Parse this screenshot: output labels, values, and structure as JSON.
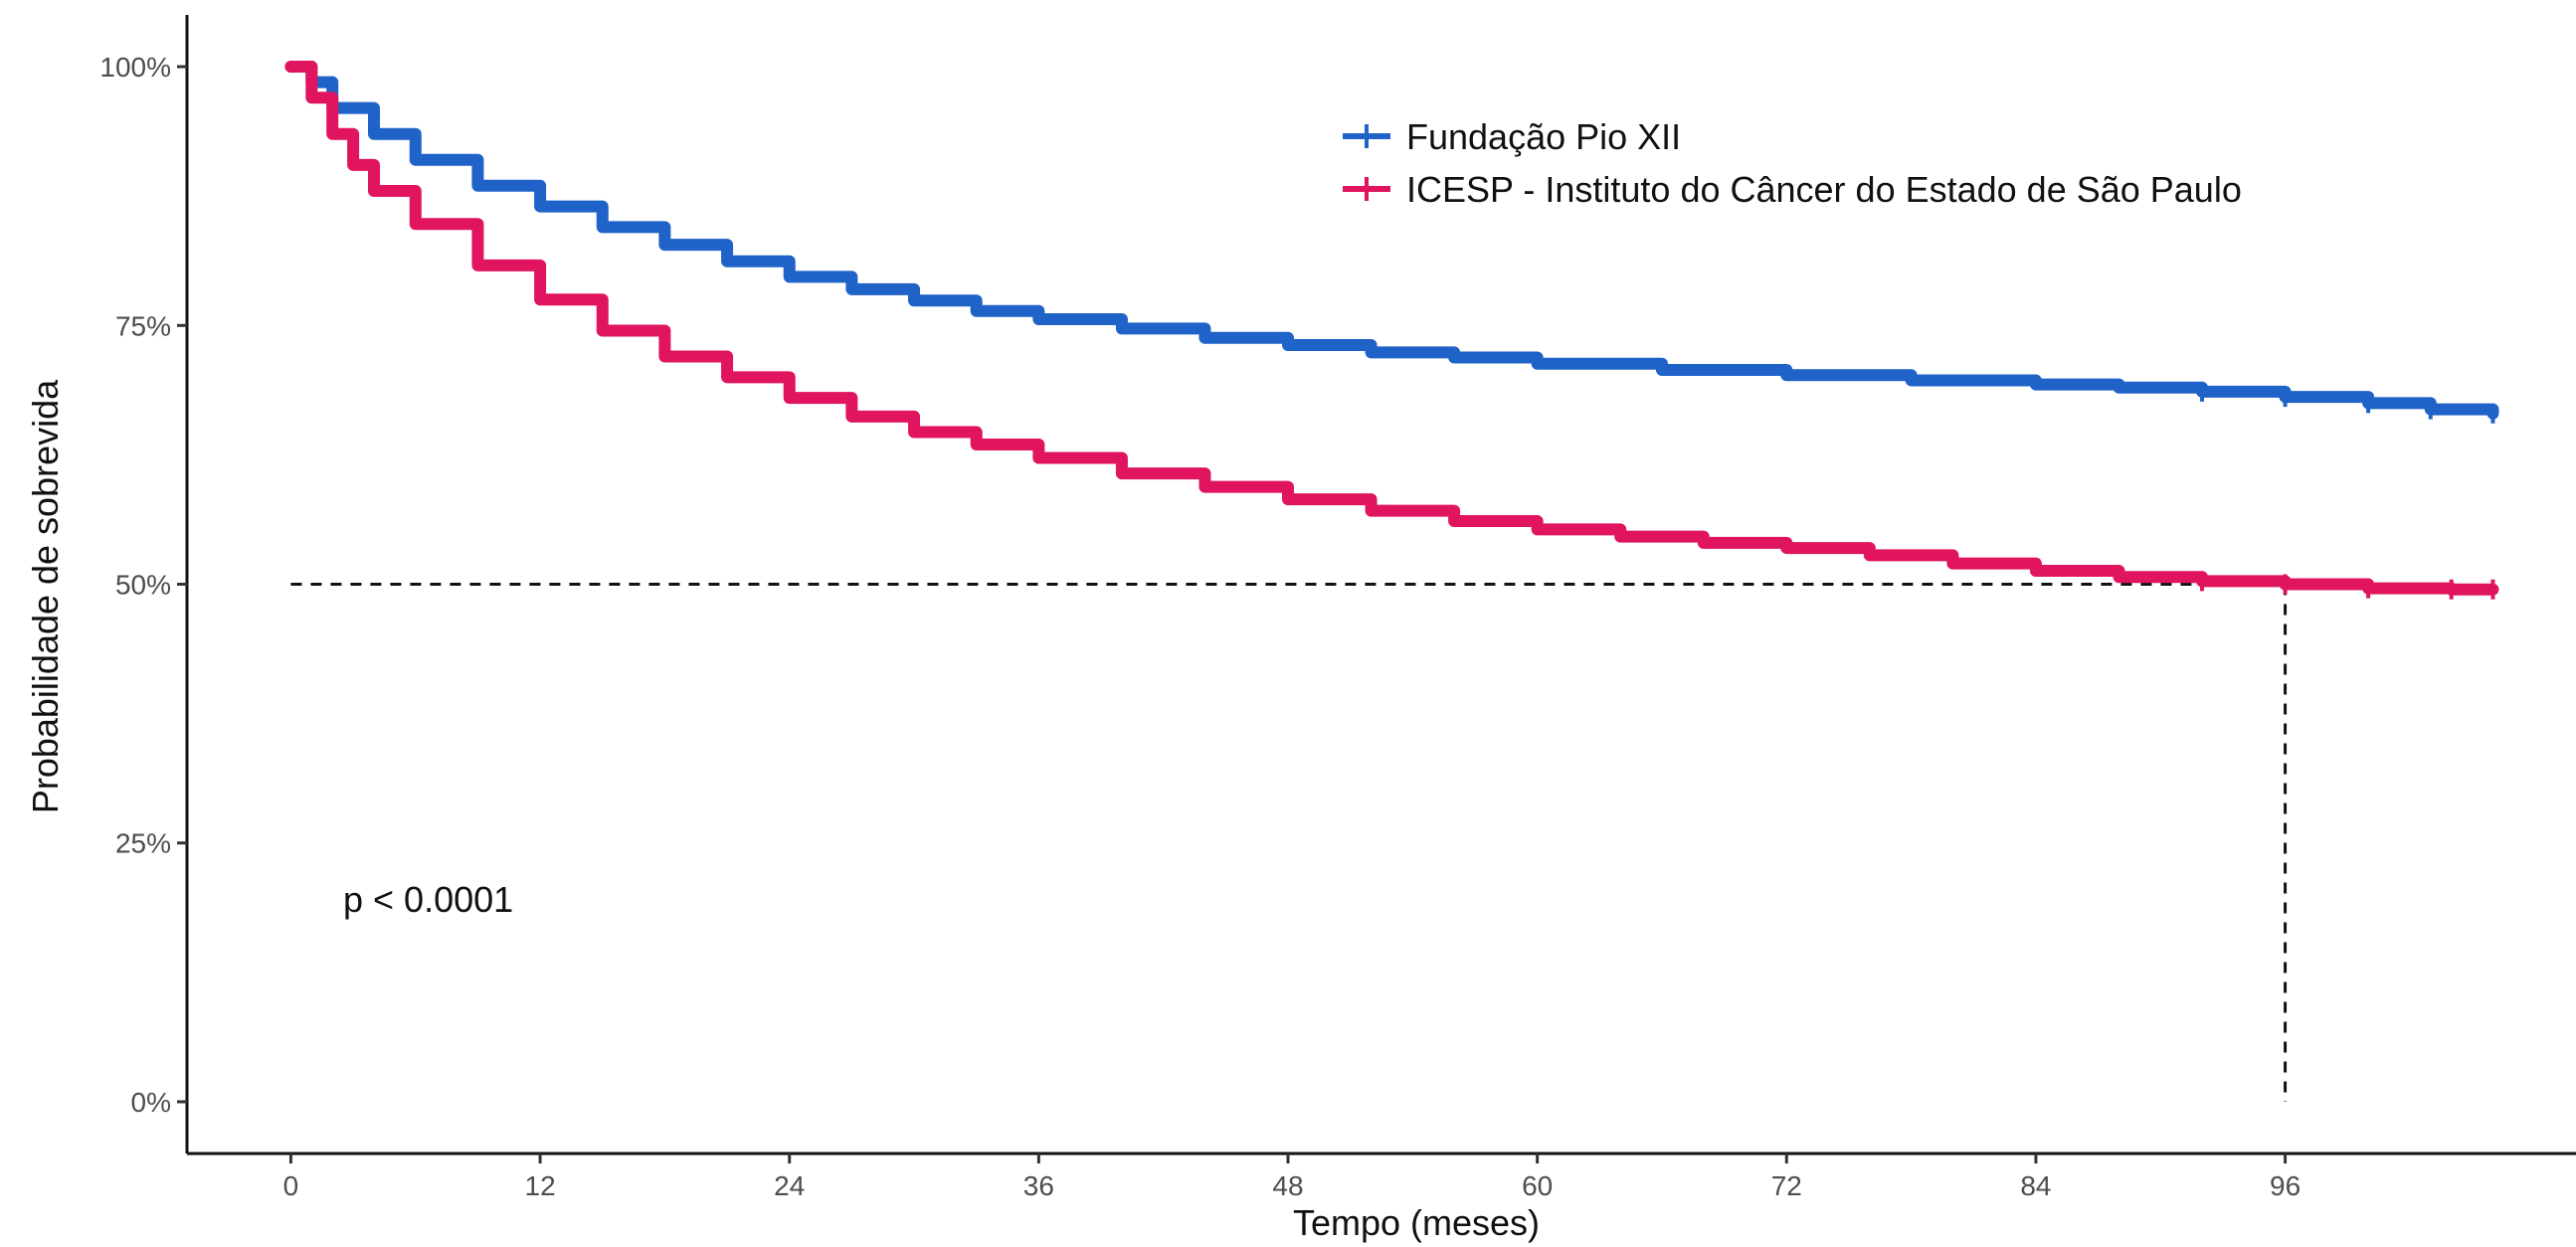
{
  "chart_data": {
    "type": "line",
    "xlabel": "Tempo (meses)",
    "ylabel": "Probabilidade de sobrevida",
    "xlim": [
      -5,
      110
    ],
    "ylim": [
      -0.05,
      1.05
    ],
    "xticks": [
      0,
      12,
      24,
      36,
      48,
      60,
      72,
      84,
      96
    ],
    "xtick_labels": [
      "0",
      "12",
      "24",
      "36",
      "48",
      "60",
      "72",
      "84",
      "96"
    ],
    "yticks": [
      0,
      0.25,
      0.5,
      0.75,
      1.0
    ],
    "ytick_labels": [
      "0%",
      "25%",
      "50%",
      "75%",
      "100%"
    ],
    "grid": false,
    "legend_position": "top-right",
    "annotation": "p < 0.0001",
    "median_reference": {
      "y": 0.5,
      "x": 96
    },
    "series": [
      {
        "name": "Fundação Pio XII",
        "color": "#1f62c8",
        "x": [
          0,
          1,
          2,
          4,
          6,
          9,
          12,
          15,
          18,
          21,
          24,
          27,
          30,
          33,
          36,
          40,
          44,
          48,
          52,
          56,
          60,
          66,
          72,
          78,
          84,
          88,
          92,
          96,
          100,
          103,
          106
        ],
        "y": [
          1.0,
          0.985,
          0.96,
          0.935,
          0.91,
          0.885,
          0.865,
          0.845,
          0.828,
          0.812,
          0.797,
          0.785,
          0.774,
          0.764,
          0.756,
          0.747,
          0.738,
          0.731,
          0.724,
          0.719,
          0.713,
          0.707,
          0.702,
          0.697,
          0.693,
          0.69,
          0.686,
          0.681,
          0.675,
          0.669,
          0.665
        ]
      },
      {
        "name": "ICESP - Instituto do Câncer do Estado de São Paulo",
        "color": "#e0145f",
        "x": [
          0,
          1,
          2,
          3,
          4,
          6,
          9,
          12,
          15,
          18,
          21,
          24,
          27,
          30,
          33,
          36,
          40,
          44,
          48,
          52,
          56,
          60,
          64,
          68,
          72,
          76,
          80,
          84,
          88,
          92,
          96,
          100,
          104,
          106
        ],
        "y": [
          1.0,
          0.97,
          0.935,
          0.905,
          0.88,
          0.848,
          0.808,
          0.775,
          0.745,
          0.72,
          0.7,
          0.68,
          0.662,
          0.647,
          0.635,
          0.622,
          0.607,
          0.594,
          0.582,
          0.571,
          0.561,
          0.553,
          0.546,
          0.54,
          0.535,
          0.528,
          0.52,
          0.513,
          0.507,
          0.503,
          0.5,
          0.496,
          0.495,
          0.495
        ]
      }
    ]
  }
}
